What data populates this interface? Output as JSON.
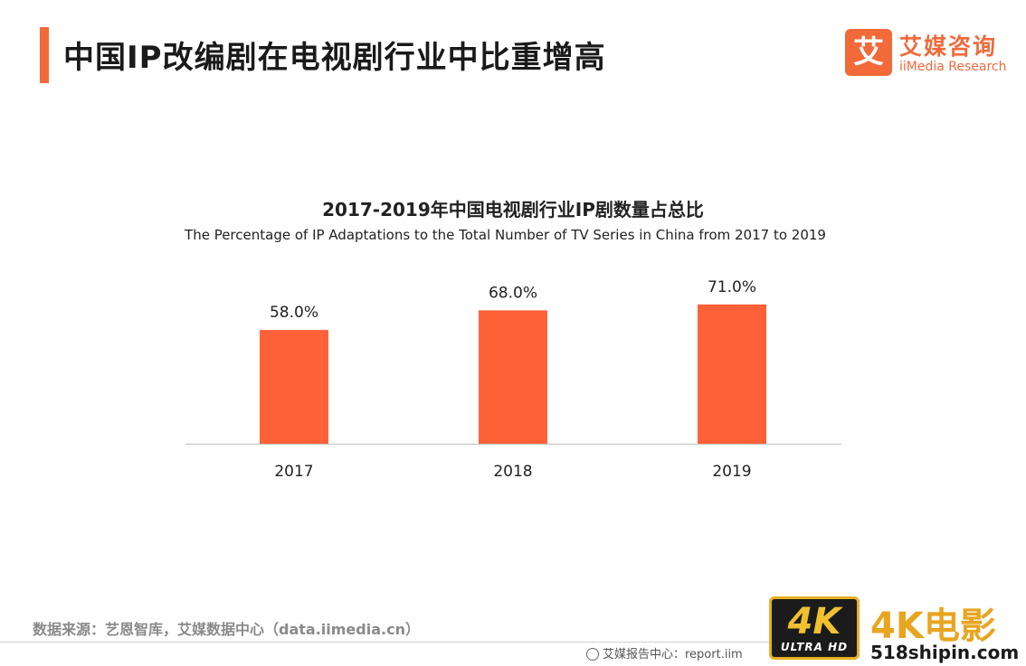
{
  "header": {
    "title": "中国IP改编剧在电视剧行业中比重增高"
  },
  "brand": {
    "logo_char": "艾",
    "name": "艾媒咨询",
    "name_en": "iiMedia Research"
  },
  "chart_data": {
    "type": "bar",
    "title": "2017-2019年中国电视剧行业IP剧数量占总比",
    "subtitle": "The Percentage of IP Adaptations to the Total Number of TV Series in China from 2017 to 2019",
    "categories": [
      "2017",
      "2018",
      "2019"
    ],
    "values": [
      58.0,
      68.0,
      71.0
    ],
    "value_labels": [
      "58.0%",
      "68.0%",
      "71.0%"
    ],
    "unit": "%",
    "bar_color": "#ff6138",
    "ylim": [
      0,
      100
    ],
    "grid": false,
    "legend": "none"
  },
  "footer": {
    "source": "数据来源：艺恩智库，艾媒数据中心（data.iimedia.cn）",
    "report": "艾媒报告中心：report.iim"
  },
  "watermark": {
    "badge_big": "4K",
    "badge_small": "ULTRA HD",
    "cn": "4K电影",
    "url": "518shipin.com"
  },
  "colors": {
    "accent": "#f26a3a",
    "bar": "#ff6138",
    "axis": "#bfbfbf"
  }
}
